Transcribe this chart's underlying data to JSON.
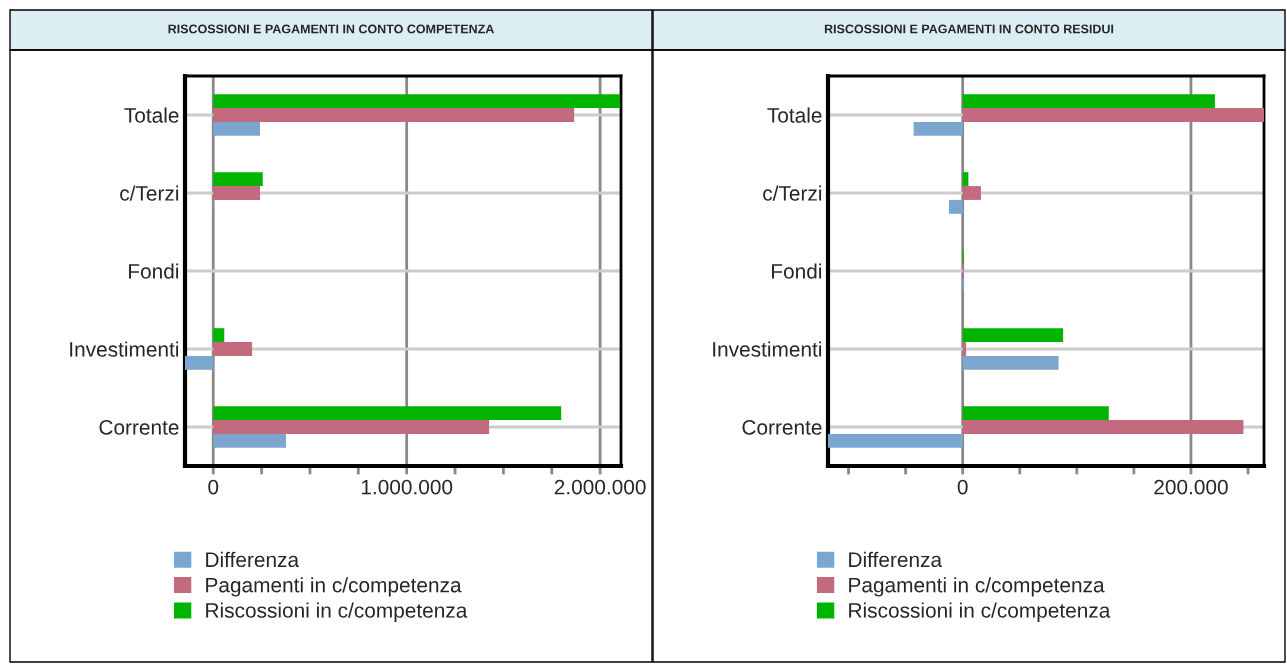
{
  "chart_data": [
    {
      "type": "bar",
      "orientation": "horizontal",
      "title": "RISCOSSIONI E PAGAMENTI IN CONTO COMPETENZA",
      "categories": [
        "Totale",
        "c/Terzi",
        "Fondi",
        "Investimenti",
        "Corrente"
      ],
      "series": [
        {
          "name": "Differenza",
          "color": "#7aa6d0",
          "values": [
            242000,
            2000,
            0,
            -146000,
            376000
          ]
        },
        {
          "name": "Pagamenti in c/competenza",
          "color": "#c46a7e",
          "values": [
            1866000,
            242000,
            0,
            201000,
            1426000
          ]
        },
        {
          "name": "Riscossioni in c/competenza",
          "color": "#00b400",
          "values": [
            2103000,
            256000,
            0,
            57000,
            1799000
          ]
        }
      ],
      "xlim": [
        -146000,
        2108000
      ],
      "xticks": [
        0,
        {
          "value": 250000,
          "label": null
        },
        {
          "value": 500000,
          "label": null
        },
        {
          "value": 750000,
          "label": null
        },
        {
          "value": 1000000,
          "label": "1.000.000"
        },
        {
          "value": 1250000,
          "label": null
        },
        {
          "value": 1500000,
          "label": null
        },
        {
          "value": 1750000,
          "label": null
        },
        {
          "value": 2000000,
          "label": "2.000.000"
        }
      ],
      "grid": true,
      "legend": "bottom"
    },
    {
      "type": "bar",
      "orientation": "horizontal",
      "title": "RISCOSSIONI E PAGAMENTI IN CONTO RESIDUI",
      "categories": [
        "Totale",
        "c/Terzi",
        "Fondi",
        "Investimenti",
        "Corrente"
      ],
      "series": [
        {
          "name": "Differenza",
          "color": "#7aa6d0",
          "values": [
            -43000,
            -12000,
            1000,
            84000,
            -118000
          ]
        },
        {
          "name": "Pagamenti in c/competenza",
          "color": "#c46a7e",
          "values": [
            264000,
            16000,
            1000,
            3000,
            246000
          ]
        },
        {
          "name": "Riscossioni in c/competenza",
          "color": "#00b400",
          "values": [
            221000,
            5000,
            1000,
            88000,
            128000
          ]
        }
      ],
      "xlim": [
        -118000,
        264000
      ],
      "xticks": [
        {
          "value": -100000,
          "label": null
        },
        {
          "value": -50000,
          "label": null
        },
        0,
        {
          "value": 50000,
          "label": null
        },
        {
          "value": 100000,
          "label": null
        },
        {
          "value": 150000,
          "label": null
        },
        {
          "value": 200000,
          "label": "200.000"
        },
        {
          "value": 250000,
          "label": null
        }
      ],
      "grid": true,
      "legend": "bottom"
    }
  ]
}
